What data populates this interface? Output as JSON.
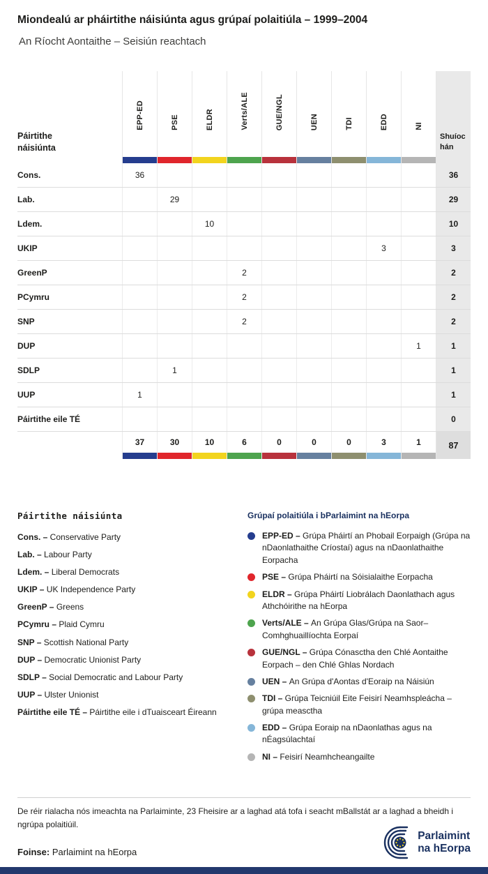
{
  "header": {
    "title": "Miondealú ar pháirtithe náisiúnta agus grúpaí polaitiúla – 1999–2004",
    "subtitle": "An Ríocht Aontaithe – Seisiún reachtach"
  },
  "chart_data": {
    "type": "table",
    "title": "Miondealú ar pháirtithe náisiúnta agus grúpaí polaitiúla – 1999–2004",
    "subtitle": "An Ríocht Aontaithe – Seisiún reachtach",
    "row_header": "Páirtithe náisiúnta",
    "seats_header": "Shuíochán",
    "columns": [
      "EPP-ED",
      "PSE",
      "ELDR",
      "Verts/ALE",
      "GUE/NGL",
      "UEN",
      "TDI",
      "EDD",
      "NI"
    ],
    "column_colors": [
      "#253d8e",
      "#e0262c",
      "#f2d41e",
      "#4ea44e",
      "#b8323c",
      "#66809f",
      "#8e8f6f",
      "#85b6d8",
      "#b5b5b5"
    ],
    "rows": [
      {
        "party": "Cons.",
        "values": [
          36,
          null,
          null,
          null,
          null,
          null,
          null,
          null,
          null
        ],
        "seats": 36
      },
      {
        "party": "Lab.",
        "values": [
          null,
          29,
          null,
          null,
          null,
          null,
          null,
          null,
          null
        ],
        "seats": 29
      },
      {
        "party": "Ldem.",
        "values": [
          null,
          null,
          10,
          null,
          null,
          null,
          null,
          null,
          null
        ],
        "seats": 10
      },
      {
        "party": "UKIP",
        "values": [
          null,
          null,
          null,
          null,
          null,
          null,
          null,
          3,
          null
        ],
        "seats": 3
      },
      {
        "party": "GreenP",
        "values": [
          null,
          null,
          null,
          2,
          null,
          null,
          null,
          null,
          null
        ],
        "seats": 2
      },
      {
        "party": "PCymru",
        "values": [
          null,
          null,
          null,
          2,
          null,
          null,
          null,
          null,
          null
        ],
        "seats": 2
      },
      {
        "party": "SNP",
        "values": [
          null,
          null,
          null,
          2,
          null,
          null,
          null,
          null,
          null
        ],
        "seats": 2
      },
      {
        "party": "DUP",
        "values": [
          null,
          null,
          null,
          null,
          null,
          null,
          null,
          null,
          1
        ],
        "seats": 1
      },
      {
        "party": "SDLP",
        "values": [
          null,
          1,
          null,
          null,
          null,
          null,
          null,
          null,
          null
        ],
        "seats": 1
      },
      {
        "party": "UUP",
        "values": [
          1,
          null,
          null,
          null,
          null,
          null,
          null,
          null,
          null
        ],
        "seats": 1
      },
      {
        "party": "Páirtithe eile TÉ",
        "values": [
          null,
          null,
          null,
          null,
          null,
          null,
          null,
          null,
          null
        ],
        "seats": 0
      }
    ],
    "totals": {
      "values": [
        37,
        30,
        10,
        6,
        0,
        0,
        0,
        3,
        1
      ],
      "seats": 87
    }
  },
  "legend_left": {
    "heading": "Páirtithe náisiúnta",
    "items": [
      {
        "abbr": "Cons. –",
        "name": "Conservative Party"
      },
      {
        "abbr": "Lab. –",
        "name": "Labour Party"
      },
      {
        "abbr": "Ldem. –",
        "name": "Liberal Democrats"
      },
      {
        "abbr": "UKIP –",
        "name": "UK Independence Party"
      },
      {
        "abbr": "GreenP –",
        "name": "Greens"
      },
      {
        "abbr": "PCymru –",
        "name": "Plaid Cymru"
      },
      {
        "abbr": "SNP –",
        "name": "Scottish National Party"
      },
      {
        "abbr": "DUP –",
        "name": "Democratic Unionist Party"
      },
      {
        "abbr": "SDLP –",
        "name": "Social Democratic and Labour Party"
      },
      {
        "abbr": "UUP –",
        "name": "Ulster Unionist"
      },
      {
        "abbr": "Páirtithe eile TÉ –",
        "name": "Páirtithe eile i dTuaisceart Éireann"
      }
    ]
  },
  "legend_right": {
    "heading": "Grúpaí polaitiúla i bParlaimint na hEorpa",
    "items": [
      {
        "abbr": "EPP-ED –",
        "desc": "Grúpa Pháirtí an Phobail Eorpaigh (Grúpa na nDaonlathaithe Críostaí) agus na nDaonlathaithe Eorpacha"
      },
      {
        "abbr": "PSE –",
        "desc": "Grúpa Pháirtí na Sóisialaithe Eorpacha"
      },
      {
        "abbr": "ELDR –",
        "desc": "Grúpa Pháirtí Liobrálach Daonlathach agus Athchóirithe na hEorpa"
      },
      {
        "abbr": "Verts/ALE –",
        "desc": "An Grúpa Glas/Grúpa na Saor–Comhghuaillíochta Eorpaí"
      },
      {
        "abbr": "GUE/NGL –",
        "desc": "Grúpa Cónasctha den Chlé Aontaithe Eorpach – den Chlé Ghlas Nordach"
      },
      {
        "abbr": "UEN –",
        "desc": "An Grúpa d'Aontas d'Eoraip na Náisiún"
      },
      {
        "abbr": "TDI –",
        "desc": "Grúpa Teicniúil Eite Feisirí Neamhspleácha – grúpa measctha"
      },
      {
        "abbr": "EDD –",
        "desc": "Grúpa Eoraip na nDaonlathas agus na nÉagsúlachtaí"
      },
      {
        "abbr": "NI –",
        "desc": "Feisirí Neamhcheangailte"
      }
    ]
  },
  "footnote": "De réir rialacha nós imeachta na Parlaiminte, 23 Fheisire ar a laghad atá tofa i seacht mBallstát ar a laghad a bheidh i ngrúpa polaitiúil.",
  "footer": {
    "source_label": "Foinse:",
    "source_value": "Parlaimint na hEorpa",
    "logo_line1": "Parlaimint",
    "logo_line2": "na hEorpa"
  },
  "colors": {
    "accent_navy": "#1a3160",
    "bottom_bar": "#22386d",
    "seats_column_bg": "#e9e9e9",
    "totals_seats_bg": "#dedede"
  }
}
